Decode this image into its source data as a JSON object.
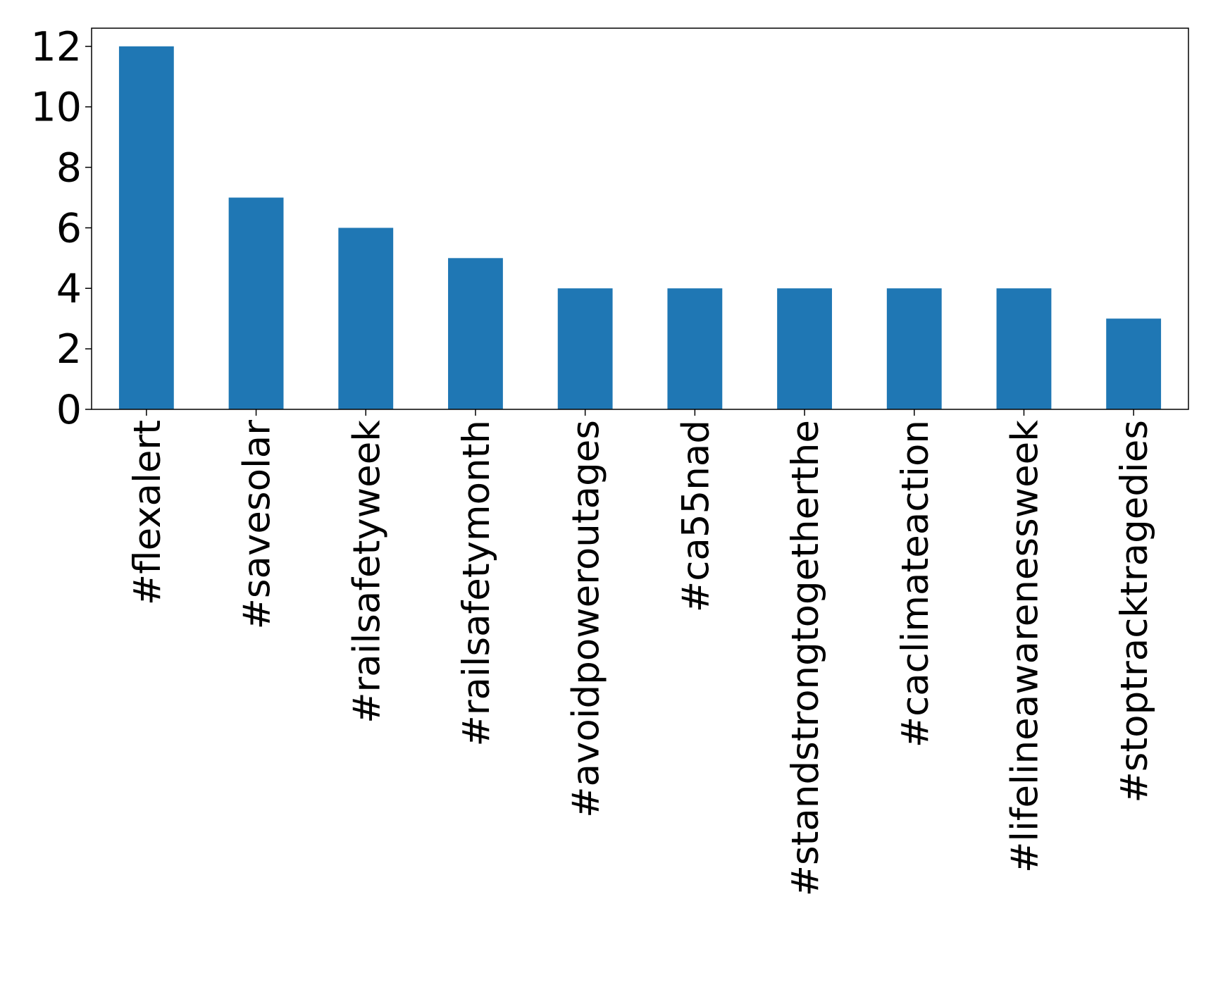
{
  "chart_data": {
    "type": "bar",
    "categories": [
      "#flexalert",
      "#savesolar",
      "#railsafetyweek",
      "#railsafetymonth",
      "#avoidpoweroutages",
      "#ca55nad",
      "#standstrongtogetherthe",
      "#caclimateaction",
      "#lifelineawarenessweek",
      "#stoptracktragedies"
    ],
    "values": [
      12,
      7,
      6,
      5,
      4,
      4,
      4,
      4,
      4,
      3
    ],
    "color": "#1f77b4",
    "ylim": [
      0,
      12.6
    ],
    "yticks": [
      0,
      2,
      4,
      6,
      8,
      10,
      12
    ],
    "grid": false
  }
}
